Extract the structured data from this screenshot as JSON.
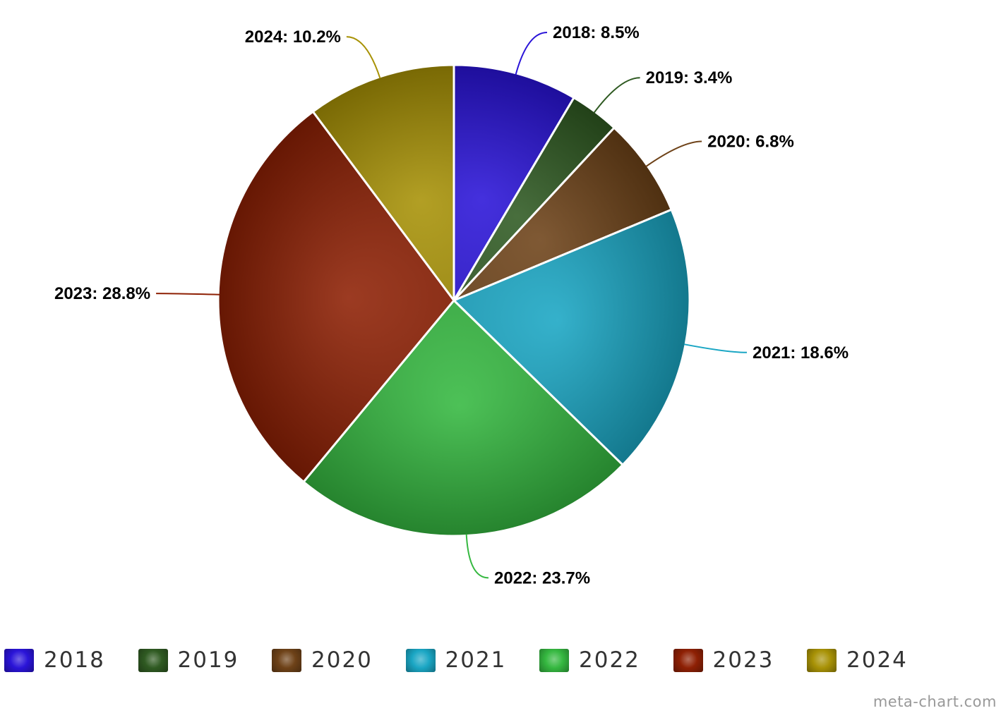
{
  "chart_data": {
    "type": "pie",
    "categories": [
      "2018",
      "2019",
      "2020",
      "2021",
      "2022",
      "2023",
      "2024"
    ],
    "values": [
      8.5,
      3.4,
      6.8,
      18.6,
      23.7,
      28.8,
      10.2
    ],
    "labels": [
      "2018: 8.5%",
      "2019: 3.4%",
      "2020: 6.8%",
      "2021: 18.6%",
      "2022: 23.7%",
      "2023: 28.8%",
      "2024: 10.2%"
    ],
    "colors": [
      "#2a14d8",
      "#2f5a22",
      "#6e4218",
      "#1aa6c4",
      "#35b840",
      "#8e2004",
      "#a89206"
    ],
    "legend_position": "bottom",
    "start_angle": "top, clockwise"
  },
  "legend": {
    "items": [
      {
        "label": "2018",
        "color": "#2a14d8"
      },
      {
        "label": "2019",
        "color": "#2f5a22"
      },
      {
        "label": "2020",
        "color": "#6e4218"
      },
      {
        "label": "2021",
        "color": "#1aa6c4"
      },
      {
        "label": "2022",
        "color": "#35b840"
      },
      {
        "label": "2023",
        "color": "#8e2004"
      },
      {
        "label": "2024",
        "color": "#a89206"
      }
    ]
  },
  "credit": "meta-chart.com"
}
